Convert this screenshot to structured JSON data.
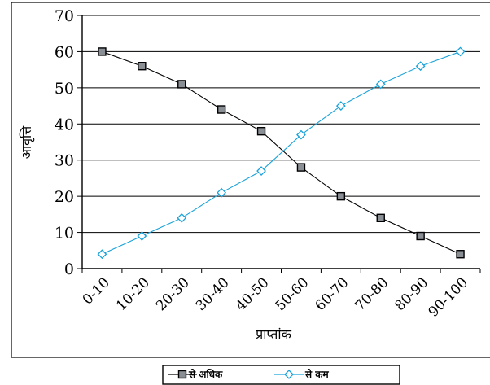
{
  "chart_data": {
    "type": "line",
    "title": "",
    "xlabel": "प्राप्तांक",
    "ylabel": "आवृत्ति",
    "categories": [
      "0-10",
      "10-20",
      "20-30",
      "30-40",
      "40-50",
      "50-60",
      "60-70",
      "70-80",
      "80-90",
      "90-100"
    ],
    "ylim": [
      0,
      70
    ],
    "yticks": [
      0,
      10,
      20,
      30,
      40,
      50,
      60,
      70
    ],
    "grid": true,
    "legend_position": "bottom",
    "series": [
      {
        "name": "से अधिक",
        "values": [
          60,
          56,
          51,
          44,
          38,
          28,
          20,
          14,
          9,
          4
        ],
        "color": "#000000",
        "marker": "square"
      },
      {
        "name": "से कम",
        "values": [
          4,
          9,
          14,
          21,
          27,
          37,
          45,
          51,
          56,
          60
        ],
        "color": "#1aa3d9",
        "marker": "diamond"
      }
    ]
  }
}
